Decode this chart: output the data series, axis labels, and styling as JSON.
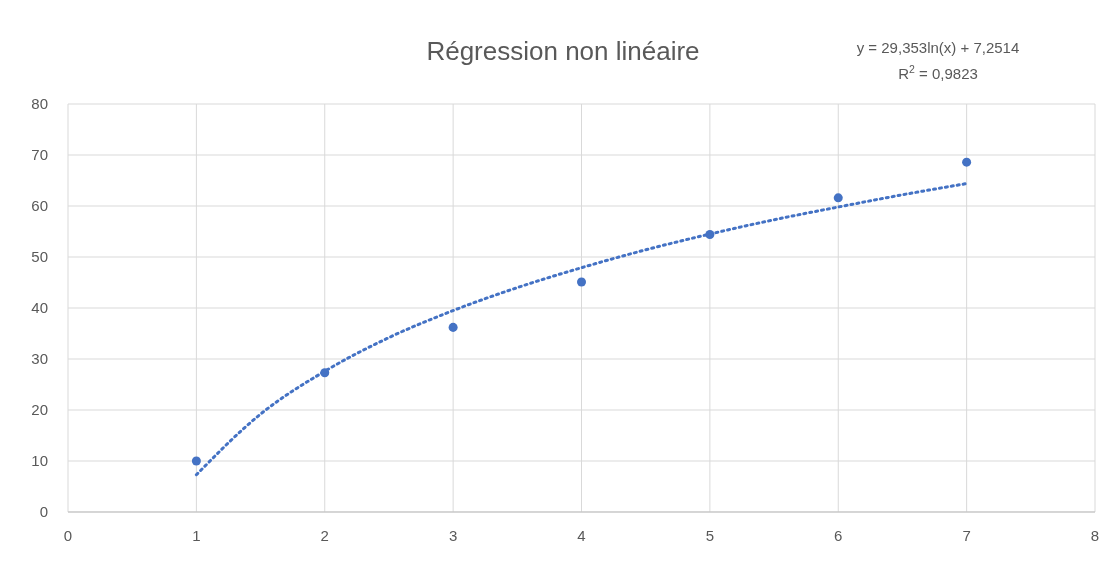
{
  "chart_data": {
    "type": "scatter",
    "title": "Régression non linéaire",
    "annotations": [
      "y = 29,353ln(x) + 7,2514",
      "R$^{2}$ = 0,9823"
    ],
    "x": [
      1,
      2,
      3,
      4,
      5,
      6,
      7
    ],
    "series": [
      {
        "color": "#4472c4",
        "marker": "circle",
        "values": [
          10,
          27.3,
          36.2,
          45.1,
          54.4,
          61.6,
          68.6
        ]
      },
      {
        "type": "line",
        "color": "#4472c4",
        "line_style": "dotted",
        "marker": "none",
        "x": [
          1,
          1.5,
          2,
          2.5,
          3,
          3.5,
          4,
          4.5,
          5,
          5.5,
          6,
          6.5,
          7
        ],
        "values": [
          7.3,
          19.2,
          27.6,
          34.2,
          39.5,
          44,
          47.9,
          51.4,
          54.5,
          57.3,
          59.8,
          62.2,
          64.4
        ]
      }
    ],
    "xlim": [
      0,
      8
    ],
    "xticks": [
      0,
      1,
      2,
      3,
      4,
      5,
      6,
      7,
      8
    ],
    "ylim": [
      0,
      80
    ],
    "yticks": [
      0,
      10,
      20,
      30,
      40,
      50,
      60,
      70,
      80
    ],
    "grid": true
  }
}
